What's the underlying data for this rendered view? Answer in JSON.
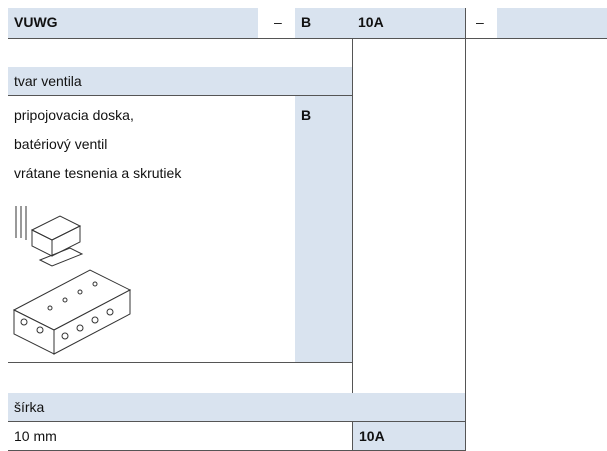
{
  "header": {
    "cells": [
      "VUWG",
      "–",
      "B",
      "10A",
      "–"
    ]
  },
  "valve_type": {
    "title": "tvar ventila",
    "lines": [
      "pripojovacia doska,",
      "batériový ventil",
      "vrátane tesnenia a skrutiek"
    ],
    "code": "B"
  },
  "width": {
    "title": "šírka",
    "option": "10 mm",
    "code": "10A"
  }
}
